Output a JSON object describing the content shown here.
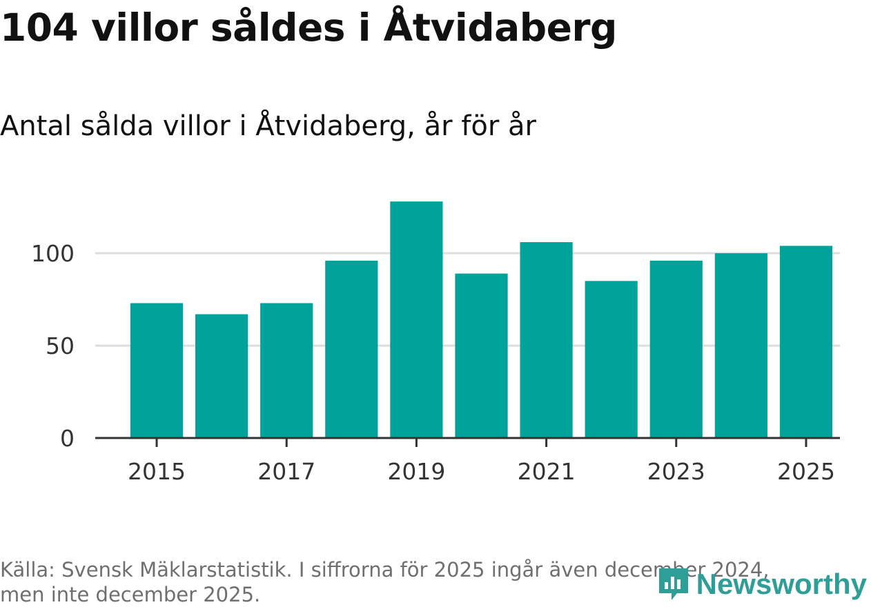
{
  "title": "104 villor såldes i Åtvidaberg",
  "subtitle": "Antal sålda villor i Åtvidaberg, år för år",
  "footer": {
    "line1": "Källa: Svensk Mäklarstatistik. I siffrorna för 2025 ingår även december 2024,",
    "line2": "men inte december 2025."
  },
  "brand": {
    "name": "Newsworthy",
    "icon": "newsworthy-logo-icon"
  },
  "colors": {
    "bar": "#00a29a",
    "grid": "#dddddd",
    "axis": "#333333",
    "text": "#333333",
    "brand": "#2f9e96"
  },
  "chart_data": {
    "type": "bar",
    "title": "Antal sålda villor i Åtvidaberg, år för år",
    "xlabel": "",
    "ylabel": "",
    "categories": [
      "2015",
      "2016",
      "2017",
      "2018",
      "2019",
      "2020",
      "2021",
      "2022",
      "2023",
      "2024",
      "2025"
    ],
    "values": [
      73,
      67,
      73,
      96,
      128,
      89,
      106,
      85,
      96,
      100,
      104
    ],
    "ylim": [
      0,
      140
    ],
    "yticks": [
      0,
      50,
      100
    ],
    "xtick_labels": [
      "2015",
      "2017",
      "2019",
      "2021",
      "2023",
      "2025"
    ],
    "grid": true,
    "legend": "none"
  }
}
